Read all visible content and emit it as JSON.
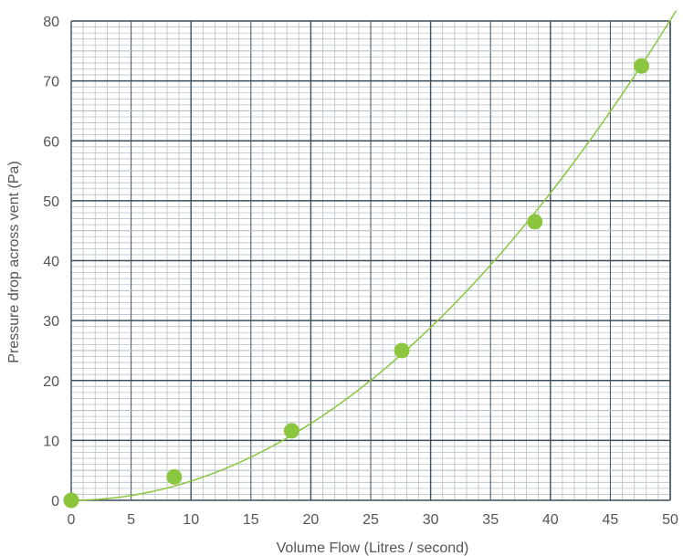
{
  "chart_data": {
    "type": "scatter",
    "title": "",
    "xlabel": "Volume Flow (Litres / second)",
    "ylabel": "Pressure drop across vent (Pa)",
    "xlim": [
      0,
      50
    ],
    "ylim": [
      0,
      80
    ],
    "x_ticks": [
      "0",
      "5",
      "10",
      "15",
      "20",
      "25",
      "30",
      "35",
      "40",
      "45",
      "50"
    ],
    "y_ticks": [
      "0",
      "10",
      "20",
      "30",
      "40",
      "50",
      "60",
      "70",
      "80"
    ],
    "grid": true,
    "points": [
      {
        "x": 0,
        "y": 0
      },
      {
        "x": 8.6,
        "y": 3.9
      },
      {
        "x": 18.4,
        "y": 11.6
      },
      {
        "x": 27.6,
        "y": 25.0
      },
      {
        "x": 38.7,
        "y": 46.5
      },
      {
        "x": 47.6,
        "y": 72.5
      }
    ],
    "trend": {
      "type": "quadratic",
      "a": 0.03205,
      "b": 0.0
    },
    "colors": {
      "series": "#8cc63f",
      "grid_major": "#3d4f5c",
      "grid_minor": "#b7c0c6",
      "text": "#555555"
    }
  }
}
